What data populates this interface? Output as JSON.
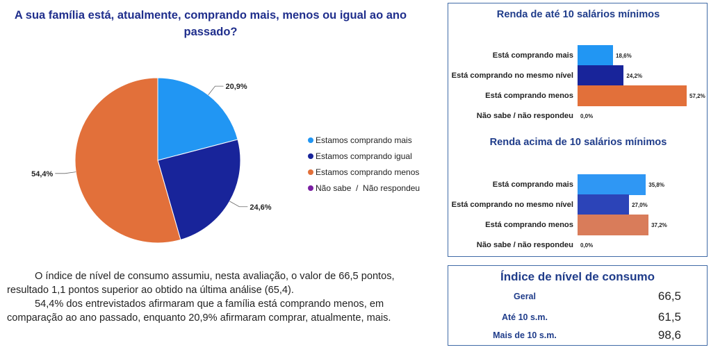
{
  "title": "A sua família está, atualmente, comprando mais, menos ou igual ao ano passado?",
  "chart_data": [
    {
      "type": "pie",
      "title": "A sua família está, atualmente, comprando mais, menos ou igual ao ano passado?",
      "slices": [
        {
          "label": "Estamos comprando mais",
          "value": 20.9,
          "display": "20,9%",
          "color": "#2196f3"
        },
        {
          "label": "Estamos comprando igual",
          "value": 24.6,
          "display": "24,6%",
          "color": "#18249a"
        },
        {
          "label": "Estamos comprando menos",
          "value": 54.4,
          "display": "54,4%",
          "color": "#e2703a"
        },
        {
          "label": "Não sabe  /  Não respondeu",
          "value": 0.0,
          "display": "",
          "color": "#7a1fa2"
        }
      ],
      "legend": "right"
    },
    {
      "type": "bar",
      "orientation": "horizontal",
      "title": "Renda de até 10 salários mínimos",
      "categories": [
        "Está comprando mais",
        "Está comprando no mesmo nível",
        "Está comprando menos",
        "Não sabe / não respondeu"
      ],
      "values": [
        18.6,
        24.2,
        57.2,
        0.0
      ],
      "labels": [
        "18,6%",
        "24,2%",
        "57,2%",
        "0,0%"
      ],
      "colors": [
        "#2196f3",
        "#18249a",
        "#e2703a",
        "#7a1fa2"
      ],
      "xlim": [
        0,
        57.2
      ]
    },
    {
      "type": "bar",
      "orientation": "horizontal",
      "title": "Renda acima de 10 salários mínimos",
      "categories": [
        "Está comprando mais",
        "Está comprando no mesmo nível",
        "Está comprando menos",
        "Não sabe / não respondeu"
      ],
      "values": [
        35.8,
        27.0,
        37.2,
        0.0
      ],
      "labels": [
        "35,8%",
        "27,0%",
        "37,2%",
        "0,0%"
      ],
      "colors": [
        "#2f97f4",
        "#2c44b8",
        "#d97c5a",
        "#7a1fa2"
      ],
      "xlim": [
        0,
        57.2
      ]
    },
    {
      "type": "table",
      "title": "Índice de nível de consumo",
      "rows": [
        {
          "label": "Geral",
          "value": "66,5"
        },
        {
          "label": "Até 10 s.m.",
          "value": "61,5"
        },
        {
          "label": "Mais de 10 s.m.",
          "value": "98,6"
        }
      ]
    }
  ],
  "body_paragraphs": [
    "O índice de nível de consumo assumiu, nesta avaliação, o valor de 66,5 pontos, resultado 1,1 pontos superior ao obtido na última análise (65,4).",
    "54,4% dos entrevistados afirmaram que a família está comprando menos, em comparação ao ano passado, enquanto 20,9% afirmaram comprar, atualmente, mais."
  ]
}
